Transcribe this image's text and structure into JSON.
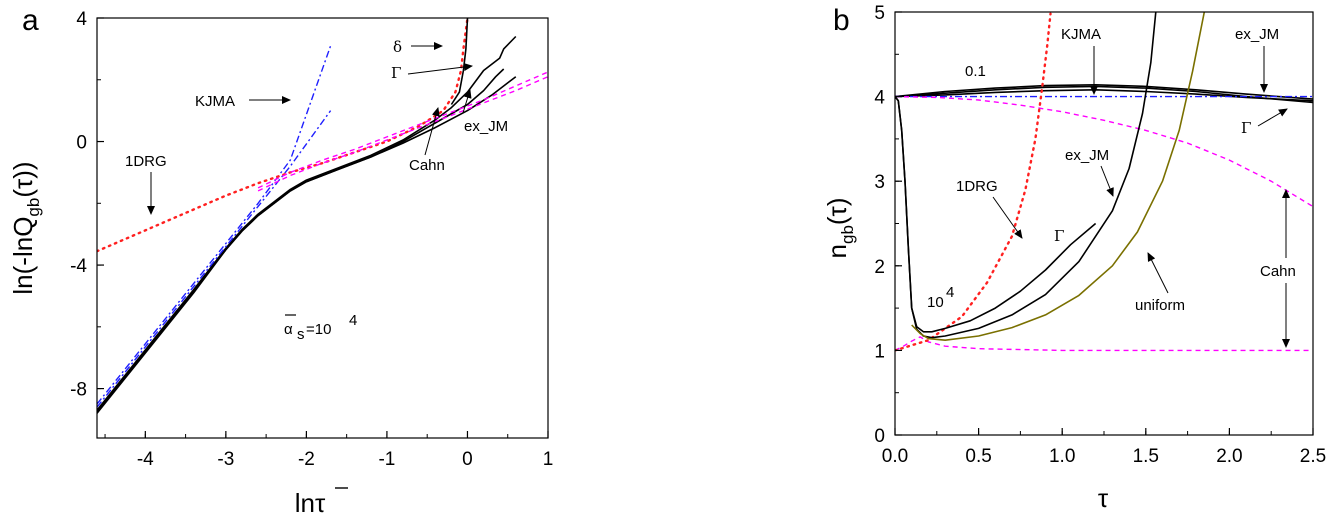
{
  "colors": {
    "black": "#000000",
    "red": "#ff2020",
    "blue": "#1f1fff",
    "magenta": "#ff00ff",
    "olive": "#7a7000"
  },
  "chart_data": [
    {
      "panel": "a",
      "type": "line",
      "xlabel": "lnτ̄",
      "ylabel": "ln(-lnQgb(τ̄))",
      "xlim": [
        -4.6,
        1
      ],
      "ylim": [
        -9.6,
        4
      ],
      "xticks": [
        "-4",
        "-3",
        "-2",
        "-1",
        "0",
        "1"
      ],
      "yticks": [
        "-8",
        "-4",
        "0",
        "4"
      ],
      "grid": false,
      "annotations": {
        "KJMA": "KJMA",
        "DRG": "1DRG",
        "delta": "δ",
        "Gamma": "Γ",
        "exJM": "ex_JM",
        "Cahn": "Cahn",
        "alpha_prefix": "α",
        "alpha_sub": "s",
        "alpha_eq": "=10",
        "alpha_sup": "4"
      },
      "series": [
        {
          "style": "black",
          "x": [
            -4.6,
            -4.2,
            -3.8,
            -3.4,
            -3.0,
            -2.8,
            -2.6,
            -2.4,
            -2.2,
            -2.0,
            -1.6,
            -1.2,
            -0.8,
            -0.4,
            0.0,
            0.3,
            0.6
          ],
          "y": [
            -8.8,
            -7.5,
            -6.2,
            -4.9,
            -3.5,
            -2.9,
            -2.4,
            -2.0,
            -1.6,
            -1.3,
            -0.9,
            -0.5,
            -0.05,
            0.45,
            1.0,
            1.5,
            2.1
          ]
        },
        {
          "style": "black",
          "x": [
            -4.6,
            -4.2,
            -3.8,
            -3.4,
            -3.0,
            -2.8,
            -2.6,
            -2.4,
            -2.2,
            -2.0,
            -1.6,
            -1.2,
            -0.8,
            -0.4,
            -0.2,
            0.0,
            0.2,
            0.4,
            0.45,
            0.6
          ],
          "y": [
            -8.7,
            -7.4,
            -6.1,
            -4.8,
            -3.45,
            -2.85,
            -2.35,
            -1.95,
            -1.55,
            -1.25,
            -0.85,
            -0.45,
            0.05,
            0.7,
            1.1,
            1.6,
            2.3,
            2.7,
            3.0,
            3.4
          ]
        },
        {
          "style": "black",
          "x": [
            -4.6,
            -4.2,
            -3.8,
            -3.4,
            -3.0,
            -2.8,
            -2.6,
            -2.4,
            -2.2,
            -2.0,
            -1.6,
            -1.2,
            -0.8,
            -0.4,
            0.0,
            0.2,
            0.35,
            0.45
          ],
          "y": [
            -8.75,
            -7.45,
            -6.15,
            -4.85,
            -3.5,
            -2.9,
            -2.4,
            -2.0,
            -1.6,
            -1.3,
            -0.9,
            -0.5,
            0.0,
            0.6,
            1.2,
            1.65,
            2.1,
            2.35
          ]
        },
        {
          "style": "blue",
          "x": [
            -4.6,
            -4.2,
            -3.8,
            -3.4,
            -3.0,
            -2.6,
            -2.2,
            -1.7
          ],
          "y": [
            -8.6,
            -7.3,
            -6.0,
            -4.7,
            -3.4,
            -2.1,
            -0.8,
            1.0
          ]
        },
        {
          "style": "blue",
          "x": [
            -4.6,
            -4.2,
            -3.8,
            -3.4,
            -3.0,
            -2.6,
            -2.2,
            -1.7
          ],
          "y": [
            -8.5,
            -7.2,
            -5.9,
            -4.6,
            -3.3,
            -2.0,
            -0.6,
            3.1
          ]
        },
        {
          "style": "red",
          "x": [
            -4.6,
            -4.2,
            -3.8,
            -3.4,
            -3.0,
            -2.6,
            -2.2,
            -1.8,
            -1.4,
            -1.0,
            -0.6,
            -0.3,
            -0.15,
            -0.08,
            -0.05,
            0.0
          ],
          "y": [
            -3.55,
            -3.1,
            -2.65,
            -2.2,
            -1.75,
            -1.35,
            -1.0,
            -0.7,
            -0.35,
            0.0,
            0.5,
            1.0,
            1.6,
            2.3,
            3.0,
            4.0
          ]
        },
        {
          "style": "black",
          "x": [
            -0.2,
            -0.1,
            -0.05,
            -0.02,
            0.0
          ],
          "y": [
            1.2,
            1.6,
            2.3,
            3.0,
            4.0
          ]
        },
        {
          "style": "magenta",
          "x": [
            -2.6,
            -2.2,
            -1.8,
            -1.4,
            -1.0,
            -0.6,
            -0.2,
            0.2,
            0.6,
            1.0
          ],
          "y": [
            -1.6,
            -1.1,
            -0.7,
            -0.35,
            0.05,
            0.45,
            0.85,
            1.25,
            1.65,
            2.1
          ]
        },
        {
          "style": "magenta",
          "x": [
            -2.6,
            -2.2,
            -1.8,
            -1.4,
            -1.0,
            -0.6,
            -0.2,
            0.2,
            0.6,
            1.0
          ],
          "y": [
            -1.5,
            -1.0,
            -0.6,
            -0.25,
            0.15,
            0.55,
            0.95,
            1.35,
            1.8,
            2.25
          ]
        }
      ]
    },
    {
      "panel": "b",
      "type": "line",
      "xlabel": "τ",
      "ylabel": "ngb(τ)",
      "xlim": [
        0,
        2.5
      ],
      "ylim": [
        0,
        5
      ],
      "xticks": [
        "0.0",
        "0.5",
        "1.0",
        "1.5",
        "2.0",
        "2.5"
      ],
      "yticks": [
        "0",
        "1",
        "2",
        "3",
        "4",
        "5"
      ],
      "grid": false,
      "annotations": {
        "KJMA": "KJMA",
        "exJM_top": "ex_JM",
        "v01": "0.1",
        "Gamma_top": "Γ",
        "exJM_mid": "ex_JM",
        "DRG": "1DRG",
        "Gamma_mid": "Γ",
        "v1e4_base": "10",
        "v1e4_sup": "4",
        "uniform": "uniform",
        "Cahn": "Cahn"
      },
      "series": [
        {
          "style": "black",
          "x": [
            0.0,
            0.3,
            0.6,
            0.9,
            1.2,
            1.5,
            1.8,
            2.1,
            2.5
          ],
          "y": [
            4.0,
            4.06,
            4.1,
            4.13,
            4.14,
            4.12,
            4.08,
            4.03,
            3.97
          ]
        },
        {
          "style": "black",
          "x": [
            0.0,
            0.3,
            0.6,
            0.9,
            1.2,
            1.5,
            1.8,
            2.1,
            2.5
          ],
          "y": [
            4.0,
            4.04,
            4.08,
            4.11,
            4.12,
            4.1,
            4.06,
            4.0,
            3.93
          ]
        },
        {
          "style": "black",
          "x": [
            0.0,
            0.3,
            0.6,
            0.9,
            1.2,
            1.5,
            1.8,
            2.1,
            2.5
          ],
          "y": [
            4.0,
            4.02,
            4.05,
            4.07,
            4.08,
            4.06,
            4.03,
            3.99,
            3.95
          ]
        },
        {
          "style": "blue",
          "x": [
            0.0,
            0.5,
            1.0,
            1.5,
            2.0,
            2.5
          ],
          "y": [
            4.0,
            4.0,
            4.0,
            4.0,
            4.0,
            4.0
          ]
        },
        {
          "style": "magenta",
          "x": [
            0.0,
            0.25,
            0.5,
            0.75,
            1.0,
            1.25,
            1.5,
            1.75,
            2.0,
            2.25,
            2.5
          ],
          "y": [
            4.0,
            3.99,
            3.96,
            3.9,
            3.82,
            3.72,
            3.6,
            3.45,
            3.25,
            3.0,
            2.7
          ]
        },
        {
          "style": "magenta",
          "x": [
            0.0,
            0.05,
            0.1,
            0.15,
            0.2,
            0.3,
            0.5,
            1.0,
            1.5,
            2.0,
            2.5
          ],
          "y": [
            1.0,
            1.05,
            1.11,
            1.16,
            1.1,
            1.05,
            1.02,
            1.0,
            1.0,
            1.0,
            1.0
          ]
        },
        {
          "style": "red",
          "x": [
            0.0,
            0.2,
            0.4,
            0.55,
            0.7,
            0.78,
            0.84,
            0.88,
            0.91,
            0.93
          ],
          "y": [
            1.0,
            1.12,
            1.4,
            1.8,
            2.35,
            2.9,
            3.5,
            4.1,
            4.6,
            4.98
          ]
        },
        {
          "style": "black",
          "x": [
            0.0,
            0.02,
            0.04,
            0.06,
            0.08,
            0.1,
            0.13,
            0.17,
            0.22,
            0.3,
            0.45,
            0.6,
            0.75,
            0.9,
            1.05,
            1.2
          ],
          "y": [
            4.0,
            3.95,
            3.6,
            3.0,
            2.2,
            1.5,
            1.28,
            1.22,
            1.22,
            1.26,
            1.35,
            1.5,
            1.7,
            1.95,
            2.25,
            2.5
          ]
        },
        {
          "style": "black",
          "x": [
            0.0,
            0.02,
            0.04,
            0.06,
            0.08,
            0.1,
            0.13,
            0.17,
            0.22,
            0.3,
            0.5,
            0.7,
            0.9,
            1.1,
            1.3,
            1.4,
            1.48,
            1.53,
            1.56
          ],
          "y": [
            4.0,
            3.95,
            3.6,
            3.0,
            2.2,
            1.5,
            1.25,
            1.17,
            1.15,
            1.17,
            1.26,
            1.42,
            1.66,
            2.05,
            2.65,
            3.15,
            3.8,
            4.4,
            5.0
          ]
        },
        {
          "style": "olive",
          "x": [
            0.1,
            0.15,
            0.2,
            0.3,
            0.5,
            0.7,
            0.9,
            1.1,
            1.3,
            1.45,
            1.6,
            1.7,
            1.78,
            1.85
          ],
          "y": [
            1.3,
            1.2,
            1.14,
            1.12,
            1.17,
            1.27,
            1.42,
            1.65,
            2.0,
            2.4,
            3.0,
            3.6,
            4.3,
            5.0
          ]
        }
      ]
    }
  ]
}
